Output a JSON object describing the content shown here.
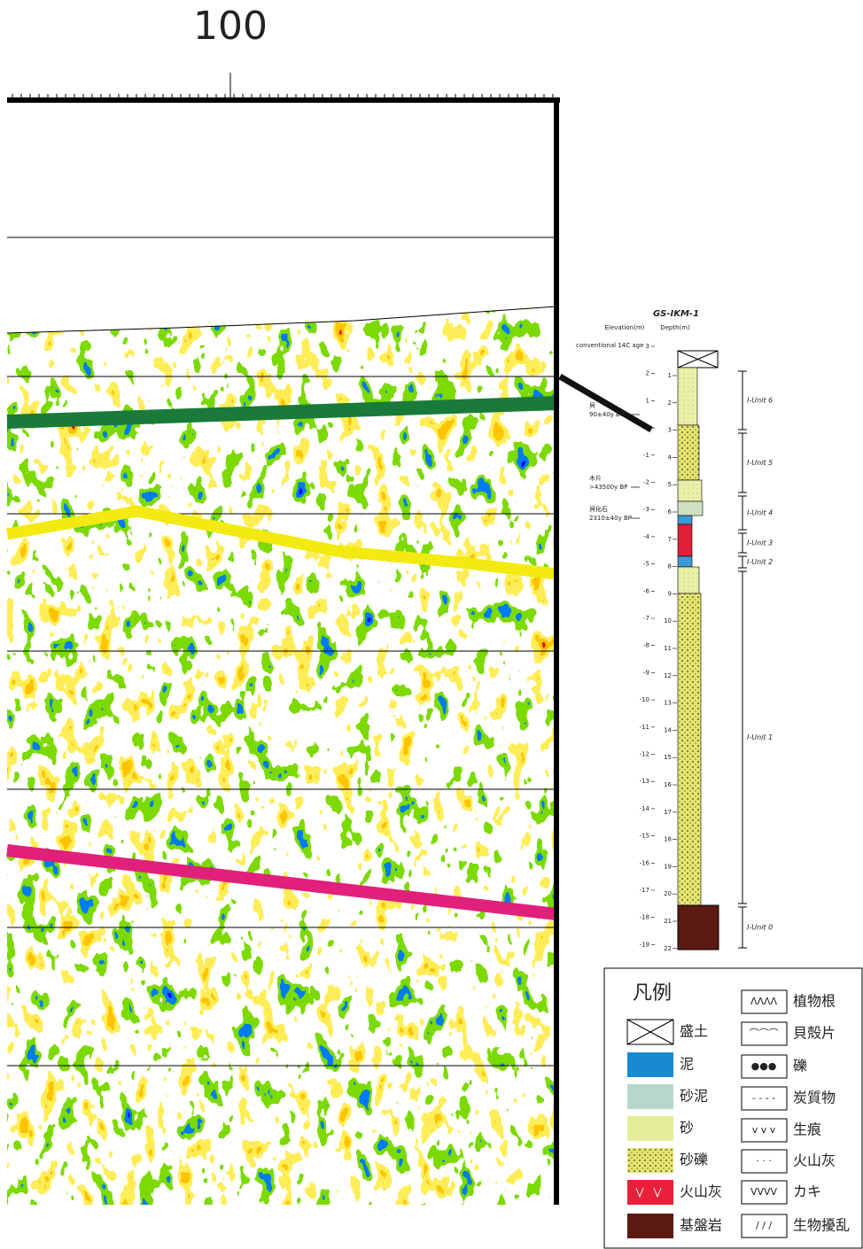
{
  "axis": {
    "tick_label": "100"
  },
  "log": {
    "title": "GS-IKM-1",
    "elevation_label": "Elevation(m)",
    "depth_label": "Depth(m)",
    "age_label": "conventional 14C age",
    "elevations": [
      3,
      2,
      1,
      0,
      -1,
      -2,
      -3,
      -4,
      -5,
      -6,
      -7,
      -8,
      -9,
      -10,
      -11,
      -12,
      -13,
      -14,
      -15,
      -16,
      -17,
      -18,
      -19
    ],
    "depths": [
      1,
      2,
      3,
      4,
      5,
      6,
      7,
      8,
      9,
      10,
      11,
      12,
      13,
      14,
      15,
      16,
      17,
      18,
      19,
      20,
      21,
      22
    ],
    "samples": [
      {
        "name": "貝",
        "age": "90±40y BP"
      },
      {
        "name": "木片",
        "age": ">43500y BP"
      },
      {
        "name": "貝化石",
        "age": "2310±40y BP"
      }
    ],
    "units": [
      "I-Unit 6",
      "I-Unit 5",
      "I-Unit 4",
      "I-Unit 3",
      "I-Unit 2",
      "I-Unit 1",
      "I-Unit 0"
    ]
  },
  "legend": {
    "title": "凡例",
    "lithology": [
      "盛土",
      "泥",
      "砂泥",
      "砂",
      "砂礫",
      "火山灰",
      "基盤岩"
    ],
    "symbols": [
      "植物根",
      "貝殻片",
      "礫",
      "炭質物",
      "生痕",
      "火山灰",
      "カキ",
      "生物擾乱"
    ]
  }
}
